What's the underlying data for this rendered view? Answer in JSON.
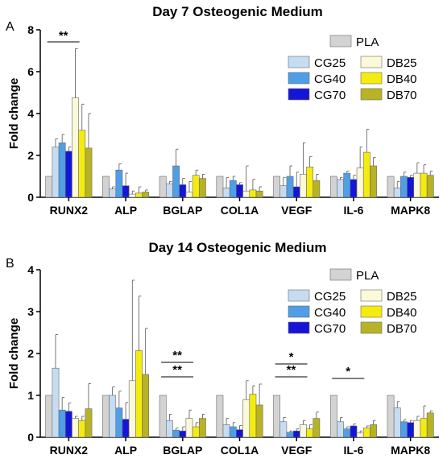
{
  "colors": {
    "PLA": "#d3d3d3",
    "CG25": "#c6dcf3",
    "CG40": "#4f9ee6",
    "CG70": "#1515d8",
    "DB25": "#fbf9d8",
    "DB40": "#f5ec0f",
    "DB70": "#b7b325"
  },
  "chart_data": [
    {
      "type": "bar",
      "panel": "A",
      "title": "Day 7 Osteogenic Medium",
      "ylabel": "Fold change",
      "xlabel": "",
      "ylim": [
        0,
        8
      ],
      "yticks": [
        "0",
        "2",
        "4",
        "6",
        "8"
      ],
      "legend": "top-right",
      "categories": [
        "RUNX2",
        "ALP",
        "BGLAP",
        "COL1A",
        "VEGF",
        "IL-6",
        "MAPK8"
      ],
      "series": [
        {
          "name": "PLA",
          "values": [
            1.0,
            1.0,
            1.0,
            1.0,
            1.0,
            1.0,
            1.0
          ],
          "errors": [
            0,
            0,
            0,
            0,
            0,
            0,
            0
          ]
        },
        {
          "name": "CG25",
          "values": [
            2.4,
            0.4,
            0.65,
            0.45,
            0.55,
            0.85,
            0.45
          ],
          "errors": [
            0.4,
            0.1,
            0.1,
            0.5,
            0.4,
            0.1,
            0.3
          ]
        },
        {
          "name": "CG40",
          "values": [
            2.6,
            1.3,
            1.5,
            0.8,
            1.0,
            1.15,
            1.0
          ],
          "errors": [
            0.4,
            0.3,
            0.8,
            0.2,
            0.5,
            0.1,
            0.2
          ]
        },
        {
          "name": "CG70",
          "values": [
            2.2,
            0.55,
            0.6,
            0.6,
            0.5,
            0.85,
            0.95
          ],
          "errors": [
            0.2,
            0.6,
            0.3,
            0.1,
            0.7,
            0.2,
            0.1
          ]
        },
        {
          "name": "DB25",
          "values": [
            4.75,
            0.15,
            0.25,
            0.3,
            1.1,
            1.4,
            1.15
          ],
          "errors": [
            2.35,
            0.15,
            0.5,
            1.2,
            1.5,
            1.0,
            0.5
          ]
        },
        {
          "name": "DB40",
          "values": [
            3.2,
            0.2,
            1.05,
            0.35,
            1.45,
            2.15,
            1.15
          ],
          "errors": [
            1.25,
            0.3,
            0.25,
            0.5,
            0.5,
            1.1,
            0.4
          ]
        },
        {
          "name": "DB70",
          "values": [
            2.35,
            0.25,
            0.9,
            0.3,
            0.8,
            1.5,
            1.05
          ],
          "errors": [
            1.65,
            0.1,
            0.2,
            0.2,
            0.3,
            0.4,
            0.2
          ]
        }
      ],
      "significance": [
        {
          "label": "**",
          "category_index": 0
        }
      ]
    },
    {
      "type": "bar",
      "panel": "B",
      "title": "Day 14 Osteogenic Medium",
      "ylabel": "Fold change",
      "xlabel": "",
      "ylim": [
        0,
        4
      ],
      "yticks": [
        "0",
        "1",
        "2",
        "3",
        "4"
      ],
      "legend": "top-right",
      "categories": [
        "RUNX2",
        "ALP",
        "BGLAP",
        "COL1A",
        "VEGF",
        "IL-6",
        "MAPK8"
      ],
      "series": [
        {
          "name": "PLA",
          "values": [
            1.0,
            1.0,
            1.0,
            1.0,
            1.0,
            1.0,
            1.0
          ],
          "errors": [
            0,
            0,
            0,
            0,
            0,
            0,
            0
          ]
        },
        {
          "name": "CG25",
          "values": [
            1.65,
            1.0,
            0.4,
            0.3,
            0.37,
            0.37,
            0.7
          ],
          "errors": [
            0.8,
            0.2,
            0.15,
            0.15,
            0.1,
            0.1,
            0.15
          ]
        },
        {
          "name": "CG40",
          "values": [
            0.65,
            0.7,
            0.17,
            0.25,
            0.12,
            0.2,
            0.37
          ],
          "errors": [
            0.3,
            0.4,
            0.05,
            0.1,
            0.03,
            0.05,
            0.05
          ]
        },
        {
          "name": "CG70",
          "values": [
            0.62,
            0.43,
            0.15,
            0.18,
            0.15,
            0.27,
            0.35
          ],
          "errors": [
            0.2,
            0.4,
            0.1,
            0.1,
            0.05,
            0.05,
            0.05
          ]
        },
        {
          "name": "DB25",
          "values": [
            0.45,
            1.35,
            0.45,
            0.9,
            0.3,
            0.1,
            0.4
          ],
          "errors": [
            0.05,
            2.4,
            0.2,
            0.45,
            0.1,
            0.05,
            0.1
          ]
        },
        {
          "name": "DB40",
          "values": [
            0.4,
            2.07,
            0.25,
            1.03,
            0.2,
            0.22,
            0.45
          ],
          "errors": [
            0.1,
            1.3,
            0.1,
            0.2,
            0.1,
            0.05,
            0.3
          ]
        },
        {
          "name": "DB70",
          "values": [
            0.68,
            1.5,
            0.45,
            0.77,
            0.45,
            0.3,
            0.58
          ],
          "errors": [
            0.6,
            1.1,
            0.1,
            0.5,
            0.15,
            0.1,
            0.05
          ]
        }
      ],
      "significance": [
        {
          "label": "**",
          "category_index": 2
        },
        {
          "label": "**",
          "category_index": 2
        },
        {
          "label": "*",
          "category_index": 4
        },
        {
          "label": "**",
          "category_index": 4
        },
        {
          "label": "*",
          "category_index": 5
        }
      ]
    }
  ]
}
